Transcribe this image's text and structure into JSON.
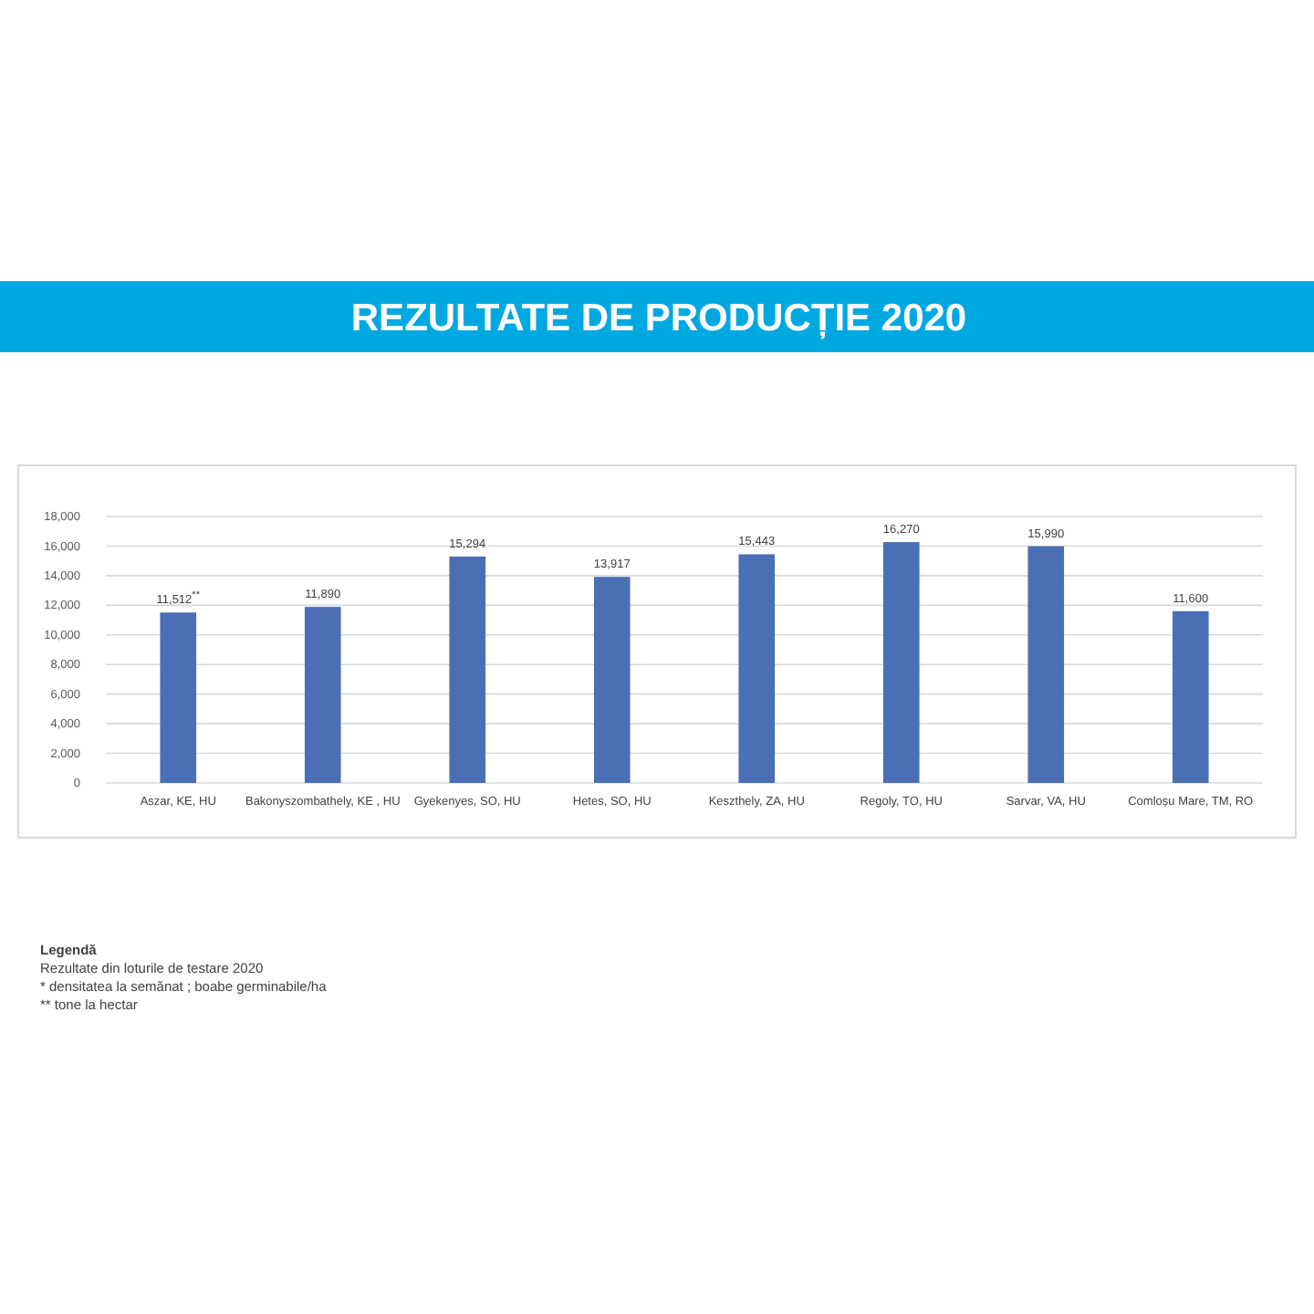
{
  "chart_data": {
    "type": "bar",
    "title": "REZULTATE DE PRODUCȚIE 2020",
    "categories": [
      "Aszar, KE, HU",
      "Bakonyszombathely, KE , HU",
      "Gyekenyes, SO, HU",
      "Hetes, SO, HU",
      "Keszthely, ZA, HU",
      "Regoly, TO, HU",
      "Sarvar, VA, HU",
      "Comloșu Mare, TM, RO"
    ],
    "values": [
      11512,
      11890,
      15294,
      13917,
      15443,
      16270,
      15990,
      11600
    ],
    "value_labels": [
      "11,512$^{**}$",
      "11,890",
      "15,294",
      "13,917",
      "15,443",
      "16,270",
      "15,990",
      "11,600"
    ],
    "color": "#4a6fb5",
    "ylim": [
      0,
      18000
    ],
    "yticks": [
      {
        "value": 0,
        "label": "0"
      },
      {
        "value": 2000,
        "label": "2,000"
      },
      {
        "value": 4000,
        "label": "4,000"
      },
      {
        "value": 6000,
        "label": "6,000"
      },
      {
        "value": 8000,
        "label": "8,000"
      },
      {
        "value": 10000,
        "label": "10,000"
      },
      {
        "value": 12000,
        "label": "12,000"
      },
      {
        "value": 14000,
        "label": "14,000"
      },
      {
        "value": 16000,
        "label": "16,000"
      },
      {
        "value": 18000,
        "label": "18,000"
      }
    ],
    "grid": "y",
    "annotations": [
      "Legendă",
      "Rezultate din loturile de testare 2020",
      "* densitatea la semănat ; boabe germinabile/ha",
      "** tone la hectar"
    ]
  }
}
